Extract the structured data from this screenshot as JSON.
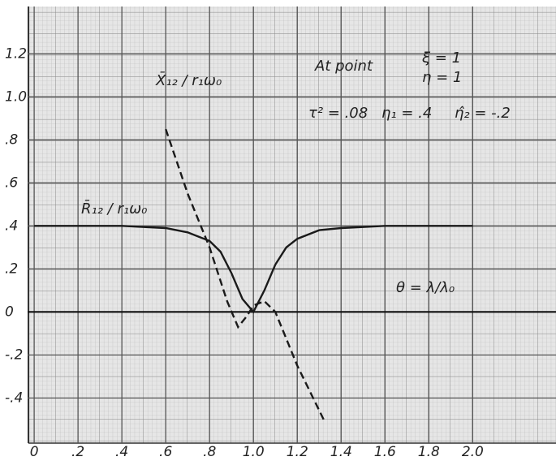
{
  "chart_data": {
    "type": "line",
    "xlim": [
      -0.03,
      2.38
    ],
    "ylim": [
      -0.61,
      1.42
    ],
    "xticks": [
      0,
      {
        "value": 0.2,
        "label": ".2"
      },
      {
        "value": 0.4,
        "label": ".4"
      },
      {
        "value": 0.6,
        "label": ".6"
      },
      {
        "value": 0.8,
        "label": ".8"
      },
      {
        "value": 1,
        "label": "1.0"
      },
      1.2,
      1.4,
      1.6,
      1.8,
      {
        "value": 2,
        "label": "2.0"
      }
    ],
    "yticks": [
      {
        "value": 1.2,
        "label": "1.2"
      },
      {
        "value": 1,
        "label": "1.0"
      },
      {
        "value": 0.8,
        "label": ".8"
      },
      {
        "value": 0.6,
        "label": ".6"
      },
      {
        "value": 0.4,
        "label": ".4"
      },
      {
        "value": 0.2,
        "label": ".2"
      },
      0,
      {
        "value": -0.2,
        "label": "-.2"
      },
      {
        "value": -0.4,
        "label": "-.4"
      }
    ],
    "grid": true,
    "series": [
      {
        "name": "R̄₁₂ / r₁ω₀",
        "color": "#1a1a1a",
        "dashed": false,
        "x": [
          0,
          0.2,
          0.4,
          0.6,
          0.7,
          0.75,
          0.8,
          0.85,
          0.9,
          0.95,
          1.0,
          1.05,
          1.1,
          1.15,
          1.2,
          1.3,
          1.4,
          1.6,
          1.8,
          2.0
        ],
        "values": [
          0.4,
          0.4,
          0.4,
          0.39,
          0.37,
          0.35,
          0.33,
          0.28,
          0.18,
          0.06,
          0.0,
          0.1,
          0.22,
          0.3,
          0.34,
          0.38,
          0.39,
          0.4,
          0.4,
          0.4
        ]
      },
      {
        "name": "X̄₁₂ / r₁ω₀",
        "color": "#1a1a1a",
        "dashed": true,
        "x": [
          0.6,
          0.7,
          0.8,
          0.88,
          0.93,
          0.97,
          1.0,
          1.05,
          1.1,
          1.2,
          1.32
        ],
        "values": [
          0.85,
          0.55,
          0.3,
          0.05,
          -0.07,
          -0.02,
          0.03,
          0.05,
          0.0,
          -0.25,
          -0.5
        ]
      }
    ],
    "annotations": [
      "At point",
      "ξ = 1",
      "η = 1",
      "τ² = .08",
      "η₁ = .4",
      "η̂₂ = -.2",
      "θ = λ/λ₀"
    ]
  }
}
